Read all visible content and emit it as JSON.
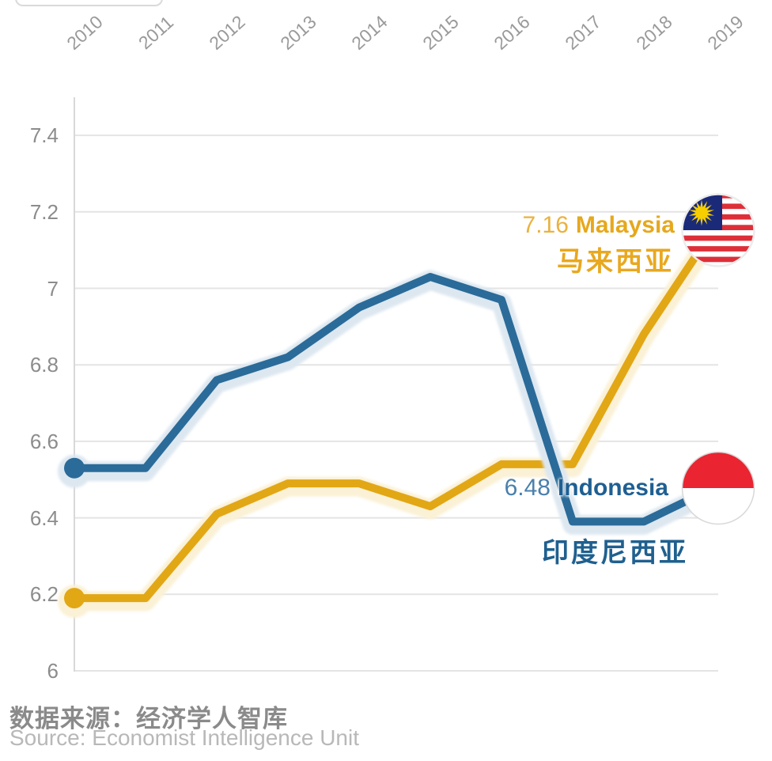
{
  "chart_data": {
    "type": "line",
    "title": "",
    "x": [
      2010,
      2011,
      2012,
      2013,
      2014,
      2015,
      2016,
      2017,
      2018,
      2019
    ],
    "series": [
      {
        "name": "Malaysia",
        "name_zh": "马来西亚",
        "color": "#E2A715",
        "halo_color": "#FAF1D6",
        "values": [
          6.19,
          6.19,
          6.41,
          6.49,
          6.49,
          6.43,
          6.54,
          6.54,
          6.88,
          7.16
        ],
        "end_value": "7.16"
      },
      {
        "name": "Indonesia",
        "name_zh": "印度尼西亚",
        "color": "#2A6B99",
        "halo_color": "#DDE7F0",
        "values": [
          6.53,
          6.53,
          6.76,
          6.82,
          6.95,
          7.03,
          6.97,
          6.39,
          6.39,
          6.48
        ],
        "end_value": "6.48"
      }
    ],
    "xlabel": "",
    "ylabel": "",
    "ylim": [
      6.0,
      7.4
    ],
    "yticks": [
      6,
      6.2,
      6.4,
      6.6,
      6.8,
      7,
      7.2,
      7.4
    ],
    "ytick_labels": [
      "6",
      "6.2",
      "6.4",
      "6.6",
      "6.8",
      "7",
      "7.2",
      "7.4"
    ],
    "grid": true,
    "legend_position": "inline-end-labels"
  },
  "annotations": {
    "malaysia": {
      "value": "7.16",
      "name": "Malaysia",
      "name_zh": "马来西亚",
      "value_color": "#EAB23F",
      "name_color": "#E6A81C",
      "zh_color": "#E8A81F"
    },
    "indonesia": {
      "value": "6.48",
      "name": "Indonesia",
      "name_zh": "印度尼西亚",
      "value_color": "#4A80AC",
      "name_color": "#1F5F92",
      "zh_color": "#1F608F"
    }
  },
  "icons": {
    "malaysia_flag": "malaysia-flag-icon",
    "indonesia_flag": "indonesia-flag-icon"
  },
  "flag_colors": {
    "malaysia_stripe_red": "#DE2F38",
    "malaysia_canton_blue": "#1A2A78",
    "malaysia_star_yellow": "#F7CE00",
    "indonesia_red": "#EA2430"
  },
  "source": {
    "zh": "数据来源：经济学人智库",
    "en": "Source: Economist Intelligence Unit"
  }
}
